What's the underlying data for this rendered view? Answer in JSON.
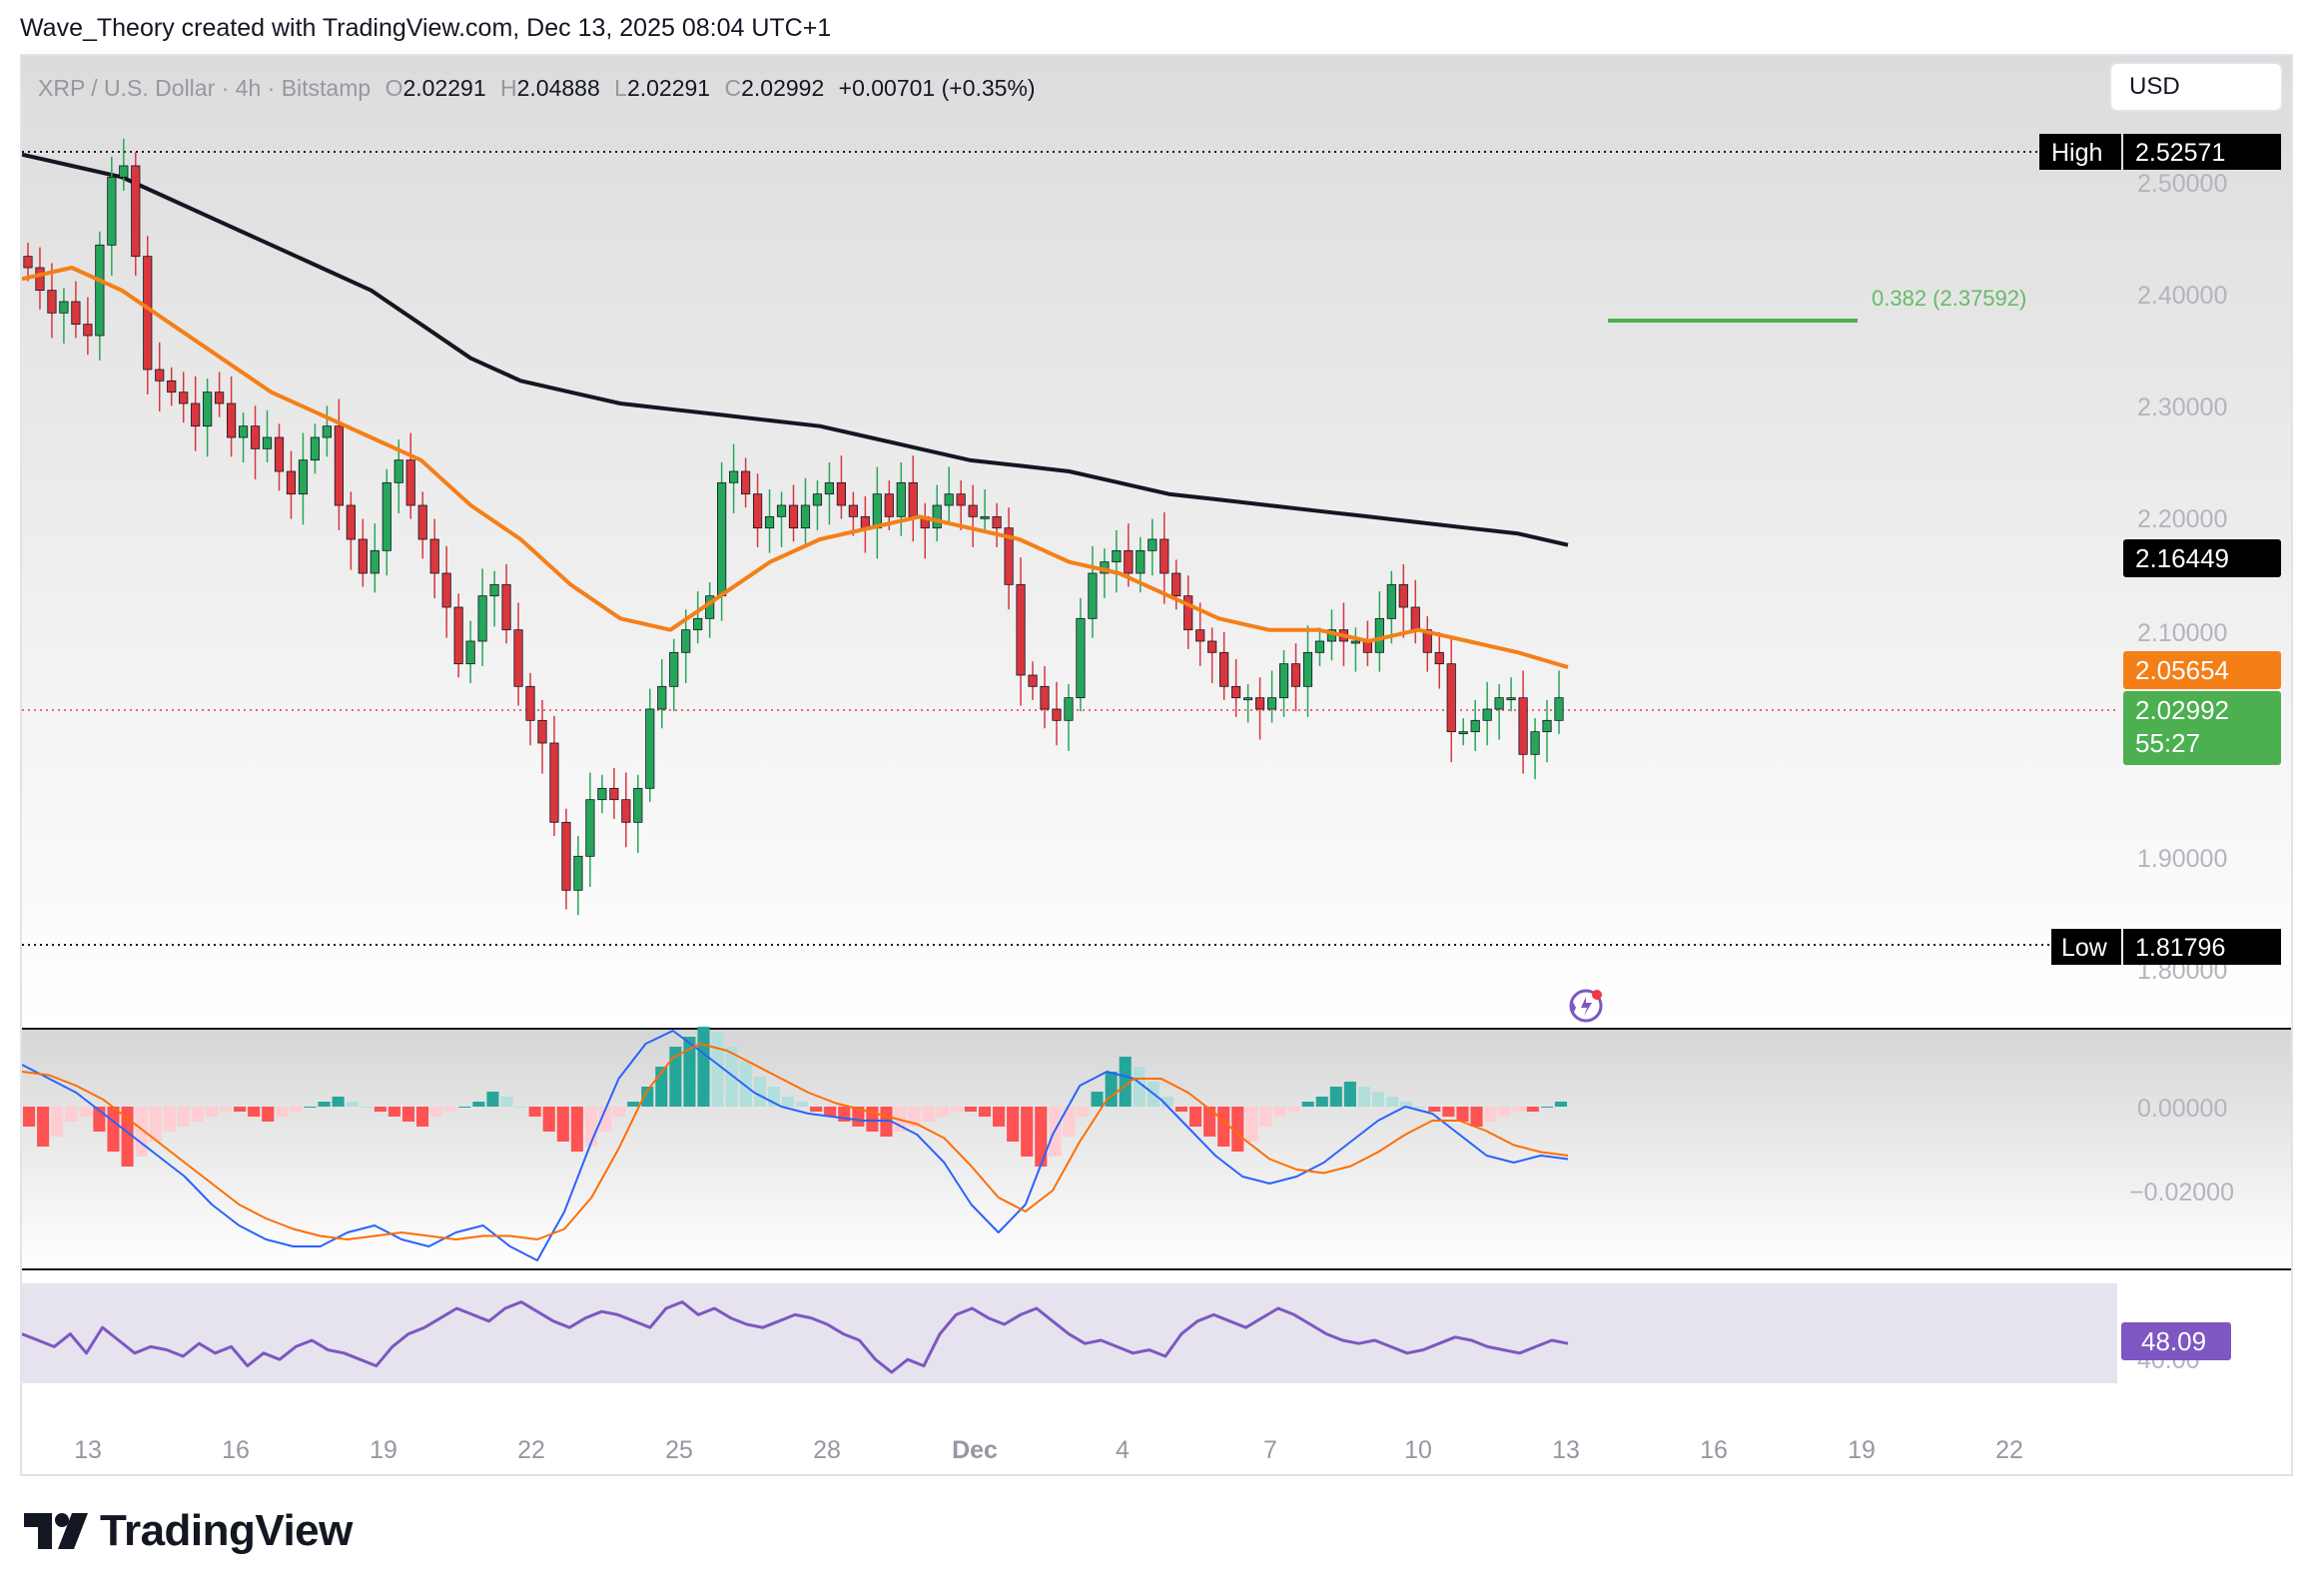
{
  "header": {
    "credit": "Wave_Theory created with TradingView.com, Dec 13, 2025 08:04 UTC+1"
  },
  "legend": {
    "symbol": "XRP / U.S. Dollar · 4h · Bitstamp",
    "o_label": "O",
    "o_value": "2.02291",
    "h_label": "H",
    "h_value": "2.04888",
    "l_label": "L",
    "l_value": "2.02291",
    "c_label": "C",
    "c_value": "2.02992",
    "change": "+0.00701 (+0.35%)"
  },
  "currency": "USD",
  "footer": {
    "brand": "TradingView"
  },
  "colors": {
    "up": "#089981",
    "down": "#f23645",
    "candle_up_body": "#26a65b",
    "candle_down_body": "#d9363e",
    "ema_orange": "#f57f17",
    "ma_black": "#131722",
    "fib_green": "#4caf50",
    "macd_line": "#2962ff",
    "signal_line": "#ff6d00",
    "rsi_line": "#7e57c2",
    "hist_up_strong": "#26a69a",
    "hist_up_weak": "#b2dfdb",
    "hist_down_strong": "#ff5252",
    "hist_down_weak": "#ffcdd2"
  },
  "chart_data": {
    "type": "candlestick",
    "timeframe": "4h",
    "x_ticks": [
      "13",
      "16",
      "19",
      "22",
      "25",
      "28",
      "Dec",
      "4",
      "7",
      "10",
      "13",
      "16",
      "19",
      "22"
    ],
    "price_axis": {
      "ticks": [
        "2.50000",
        "2.40000",
        "2.30000",
        "2.20000",
        "2.10000",
        "1.90000",
        "1.80000"
      ],
      "ylim": [
        1.75,
        2.56
      ]
    },
    "markers": {
      "high": {
        "label": "High",
        "value": "2.52571"
      },
      "low": {
        "label": "Low",
        "value": "1.81796"
      },
      "ma200": {
        "value": "2.16449"
      },
      "ema50": {
        "value": "2.05654"
      },
      "last": {
        "value": "2.02992",
        "countdown": "55:27"
      }
    },
    "fib": {
      "label": "0.382 (2.37592)",
      "level": 2.37592
    },
    "close_series": [
      2.41,
      2.39,
      2.37,
      2.38,
      2.36,
      2.35,
      2.43,
      2.49,
      2.5,
      2.42,
      2.32,
      2.31,
      2.3,
      2.29,
      2.27,
      2.3,
      2.29,
      2.26,
      2.27,
      2.25,
      2.26,
      2.23,
      2.21,
      2.24,
      2.26,
      2.27,
      2.2,
      2.17,
      2.14,
      2.16,
      2.22,
      2.24,
      2.2,
      2.17,
      2.14,
      2.11,
      2.06,
      2.08,
      2.12,
      2.13,
      2.09,
      2.04,
      2.01,
      1.99,
      1.92,
      1.86,
      1.89,
      1.94,
      1.95,
      1.94,
      1.92,
      1.95,
      2.02,
      2.04,
      2.07,
      2.09,
      2.1,
      2.12,
      2.22,
      2.23,
      2.21,
      2.18,
      2.19,
      2.2,
      2.18,
      2.2,
      2.21,
      2.22,
      2.2,
      2.19,
      2.18,
      2.21,
      2.19,
      2.22,
      2.19,
      2.18,
      2.2,
      2.21,
      2.2,
      2.19,
      2.19,
      2.18,
      2.13,
      2.05,
      2.04,
      2.02,
      2.01,
      2.03,
      2.1,
      2.14,
      2.15,
      2.16,
      2.14,
      2.16,
      2.17,
      2.14,
      2.12,
      2.09,
      2.08,
      2.07,
      2.04,
      2.03,
      2.03,
      2.02,
      2.03,
      2.06,
      2.04,
      2.07,
      2.08,
      2.09,
      2.08,
      2.08,
      2.07,
      2.1,
      2.13,
      2.11,
      2.09,
      2.07,
      2.06,
      2.0,
      2.0,
      2.01,
      2.02,
      2.03,
      2.03,
      1.98,
      2.0,
      2.01,
      2.03
    ],
    "ma200_series": [
      2.51,
      2.5,
      2.49,
      2.47,
      2.45,
      2.43,
      2.41,
      2.39,
      2.36,
      2.33,
      2.31,
      2.3,
      2.29,
      2.285,
      2.28,
      2.275,
      2.27,
      2.26,
      2.25,
      2.24,
      2.235,
      2.23,
      2.22,
      2.21,
      2.205,
      2.2,
      2.195,
      2.19,
      2.185,
      2.18,
      2.175,
      2.165
    ],
    "ema50_series": [
      2.4,
      2.41,
      2.39,
      2.36,
      2.33,
      2.3,
      2.28,
      2.26,
      2.24,
      2.2,
      2.17,
      2.13,
      2.1,
      2.09,
      2.12,
      2.15,
      2.17,
      2.18,
      2.19,
      2.18,
      2.17,
      2.15,
      2.14,
      2.12,
      2.1,
      2.09,
      2.09,
      2.08,
      2.09,
      2.08,
      2.07,
      2.057
    ],
    "macd": {
      "ticks": [
        "0.00000",
        "−0.02000"
      ],
      "hist": [
        -4,
        -8,
        -6,
        -3,
        -2,
        -5,
        -9,
        -12,
        -10,
        -7,
        -5,
        -4,
        -3,
        -2,
        -1,
        -1,
        -2,
        -3,
        -2,
        -1,
        0,
        1,
        2,
        1,
        0,
        -1,
        -2,
        -3,
        -4,
        -2,
        -1,
        0,
        1,
        3,
        2,
        0,
        -2,
        -5,
        -7,
        -9,
        -8,
        -5,
        -2,
        1,
        4,
        8,
        12,
        14,
        16,
        15,
        12,
        9,
        6,
        4,
        2,
        1,
        -1,
        -2,
        -3,
        -4,
        -5,
        -6,
        -5,
        -4,
        -3,
        -2,
        -1,
        -1,
        -2,
        -4,
        -7,
        -10,
        -12,
        -10,
        -6,
        -2,
        3,
        7,
        10,
        8,
        5,
        2,
        -1,
        -4,
        -6,
        -8,
        -9,
        -7,
        -4,
        -2,
        -1,
        1,
        2,
        4,
        5,
        4,
        3,
        2,
        1,
        0,
        -1,
        -2,
        -3,
        -4,
        -3,
        -2,
        -1,
        -1,
        0,
        1
      ],
      "macd_line": [
        12,
        8,
        4,
        -2,
        -8,
        -14,
        -20,
        -28,
        -34,
        -38,
        -40,
        -40,
        -36,
        -34,
        -38,
        -40,
        -36,
        -34,
        -40,
        -44,
        -30,
        -10,
        8,
        18,
        22,
        16,
        10,
        4,
        0,
        -2,
        -3,
        -4,
        -4,
        -8,
        -16,
        -28,
        -36,
        -28,
        -8,
        6,
        10,
        8,
        2,
        -6,
        -14,
        -20,
        -22,
        -20,
        -16,
        -10,
        -4,
        0,
        -2,
        -8,
        -14,
        -16,
        -14,
        -15
      ],
      "signal_line": [
        10,
        9,
        6,
        2,
        -4,
        -10,
        -16,
        -22,
        -28,
        -32,
        -35,
        -37,
        -38,
        -37,
        -36,
        -37,
        -38,
        -37,
        -37,
        -38,
        -35,
        -26,
        -12,
        4,
        14,
        18,
        16,
        12,
        8,
        4,
        1,
        -1,
        -3,
        -5,
        -9,
        -17,
        -26,
        -30,
        -24,
        -10,
        2,
        8,
        8,
        4,
        -2,
        -9,
        -15,
        -18,
        -19,
        -17,
        -13,
        -8,
        -4,
        -4,
        -7,
        -11,
        -13,
        -14
      ]
    },
    "rsi": {
      "value": "48.09",
      "tick": "40.00",
      "series": [
        50,
        48,
        46,
        50,
        44,
        52,
        48,
        44,
        46,
        45,
        43,
        47,
        44,
        46,
        40,
        44,
        42,
        46,
        48,
        45,
        44,
        42,
        40,
        46,
        50,
        52,
        55,
        58,
        56,
        54,
        58,
        60,
        57,
        54,
        52,
        55,
        57,
        56,
        54,
        52,
        58,
        60,
        56,
        58,
        55,
        53,
        52,
        54,
        56,
        55,
        53,
        50,
        48,
        42,
        38,
        42,
        40,
        50,
        56,
        58,
        55,
        53,
        56,
        58,
        54,
        50,
        47,
        48,
        46,
        44,
        45,
        43,
        50,
        54,
        56,
        54,
        52,
        55,
        58,
        56,
        53,
        50,
        48,
        47,
        48,
        46,
        44,
        45,
        47,
        49,
        48,
        46,
        45,
        44,
        46,
        48,
        47
      ]
    }
  }
}
